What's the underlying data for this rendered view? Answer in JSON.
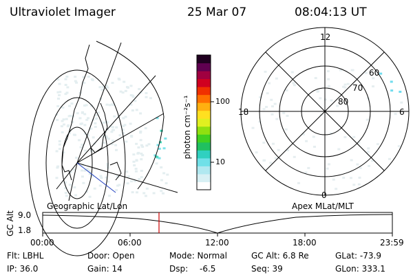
{
  "header": {
    "instrument": "Ultraviolet Imager",
    "date": "25 Mar 07",
    "time": "08:04:13 UT"
  },
  "geo_panel": {
    "label": "Geographic Lat/Lon"
  },
  "polar_panel": {
    "label": "Apex MLat/MLT",
    "mlt_labels": [
      "12",
      "18",
      "6",
      "0"
    ],
    "mlat_labels": [
      "60",
      "70",
      "80"
    ]
  },
  "colorbar": {
    "unit_label": "photon cm⁻²s⁻¹",
    "ticks": [
      "100",
      "10"
    ],
    "colors": [
      "#ffffff",
      "#d8f0f4",
      "#b0e8f0",
      "#70e0e8",
      "#30d0c0",
      "#20c060",
      "#40d020",
      "#90e010",
      "#e0f020",
      "#ffe020",
      "#ffb010",
      "#ff7000",
      "#f03000",
      "#d00020",
      "#a00040",
      "#600050",
      "#200020"
    ]
  },
  "timeline": {
    "axis_label": "GC Alt",
    "ytick_top": "9.0",
    "ytick_bottom": "1.8",
    "xticks": [
      "00:00",
      "06:00",
      "12:00",
      "18:00",
      "23:59"
    ],
    "marker_color": "#cc0000"
  },
  "info": {
    "flt": "Flt: LBHL",
    "ip": "IP: 36.0",
    "door": "Door: Open",
    "gain": "Gain: 14",
    "mode": "Mode: Normal",
    "dsp_label": "Dsp:",
    "dsp_value": "-6.5",
    "gcalt": "GC Alt: 6.8 Re",
    "seq": "Seq: 39",
    "glat": "GLat: -73.9",
    "glon": "GLon: 333.1"
  }
}
